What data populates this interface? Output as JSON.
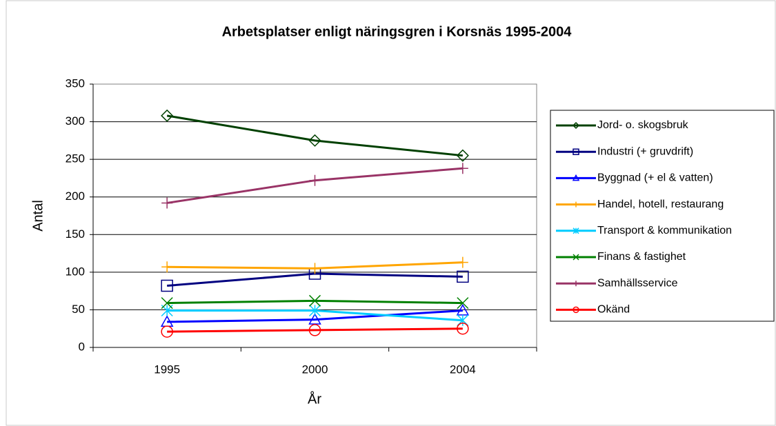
{
  "chart_data": {
    "type": "line",
    "title": "Arbetsplatser enligt näringsgren i  Korsnäs 1995-2004",
    "x_label": "År",
    "y_label": "Antal",
    "categories": [
      "1995",
      "2000",
      "2004"
    ],
    "ylim": [
      0,
      350
    ],
    "yticks": [
      0,
      50,
      100,
      150,
      200,
      250,
      300,
      350
    ],
    "grid": true,
    "legend": "right",
    "series": [
      {
        "name": "Jord- o. skogsbruk",
        "color": "#004000",
        "marker": "diamond",
        "values": [
          308,
          275,
          255
        ]
      },
      {
        "name": "Industri (+ gruvdrift)",
        "color": "#000080",
        "marker": "square",
        "values": [
          82,
          98,
          94
        ]
      },
      {
        "name": "Byggnad (+ el & vatten)",
        "color": "#0000ff",
        "marker": "triangle",
        "values": [
          34,
          37,
          49
        ]
      },
      {
        "name": "Handel, hotell, restaurang",
        "color": "#ffa500",
        "marker": "plus",
        "values": [
          107,
          105,
          113
        ]
      },
      {
        "name": "Transport & kommunikation",
        "color": "#00ccff",
        "marker": "asterisk",
        "values": [
          49,
          49,
          36
        ]
      },
      {
        "name": "Finans & fastighet",
        "color": "#008000",
        "marker": "cross",
        "values": [
          59,
          62,
          59
        ]
      },
      {
        "name": "Samhällsservice",
        "color": "#993366",
        "marker": "plus",
        "values": [
          192,
          222,
          238
        ]
      },
      {
        "name": "Okänd",
        "color": "#ff0000",
        "marker": "circle",
        "values": [
          21,
          23,
          25
        ]
      }
    ]
  }
}
